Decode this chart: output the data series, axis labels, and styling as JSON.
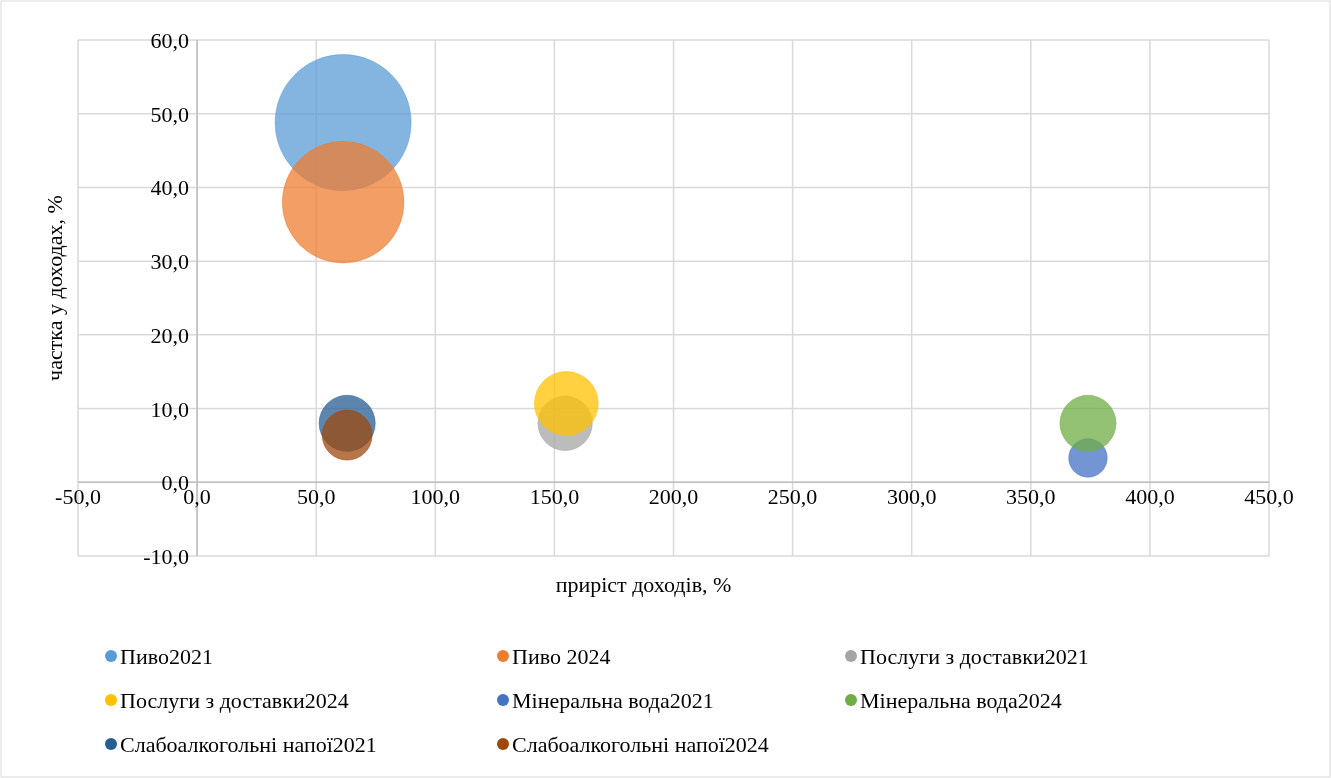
{
  "chart_data": {
    "type": "bubble",
    "xlabel": "приріст доходів, %",
    "ylabel": "частка у доходах, %",
    "xlim": [
      -50,
      450
    ],
    "ylim": [
      -10,
      60
    ],
    "xticks": [
      {
        "value": -50,
        "label": "-50,0"
      },
      {
        "value": 0,
        "label": "0,0"
      },
      {
        "value": 50,
        "label": "50,0"
      },
      {
        "value": 100,
        "label": "100,0"
      },
      {
        "value": 150,
        "label": "150,0"
      },
      {
        "value": 200,
        "label": "200,0"
      },
      {
        "value": 250,
        "label": "250,0"
      },
      {
        "value": 300,
        "label": "300,0"
      },
      {
        "value": 350,
        "label": "350,0"
      },
      {
        "value": 400,
        "label": "400,0"
      },
      {
        "value": 450,
        "label": "450,0"
      }
    ],
    "yticks": [
      {
        "value": -10,
        "label": "-10,0"
      },
      {
        "value": 0,
        "label": "0,0"
      },
      {
        "value": 10,
        "label": "10,0"
      },
      {
        "value": 20,
        "label": "20,0"
      },
      {
        "value": 30,
        "label": "30,0"
      },
      {
        "value": 40,
        "label": "40,0"
      },
      {
        "value": 50,
        "label": "50,0"
      },
      {
        "value": 60,
        "label": "60,0"
      }
    ],
    "grid": true,
    "legend": "bottom",
    "series": [
      {
        "name": "Пиво2021",
        "color": "#5b9bd5",
        "x": [
          61.3
        ],
        "values": [
          48.8
        ],
        "sizes": [
          1
        ]
      },
      {
        "name": "Пиво 2024",
        "color": "#ed7d31",
        "x": [
          61.3
        ],
        "values": [
          38.0
        ],
        "sizes": [
          0.8
        ]
      },
      {
        "name": "Послуги з доставки2021",
        "color": "#a5a5a5",
        "x": [
          154.5
        ],
        "values": [
          8.0
        ],
        "sizes": [
          0.16
        ]
      },
      {
        "name": "Послуги з доставки2024",
        "color": "#ffc000",
        "x": [
          155
        ],
        "values": [
          10.7
        ],
        "sizes": [
          0.22
        ]
      },
      {
        "name": "Мінеральна вода2021",
        "color": "#4472c4",
        "x": [
          374
        ],
        "values": [
          3.3
        ],
        "sizes": [
          0.08
        ]
      },
      {
        "name": "Мінеральна вода2024",
        "color": "#70ad47",
        "x": [
          374
        ],
        "values": [
          8.0
        ],
        "sizes": [
          0.17
        ]
      },
      {
        "name": "Слабоалкогольні напої2021",
        "color": "#255e91",
        "x": [
          63
        ],
        "values": [
          8.0
        ],
        "sizes": [
          0.17
        ]
      },
      {
        "name": "Слабоалкогольні напої2024",
        "color": "#9e480e",
        "x": [
          63
        ],
        "values": [
          6.4
        ],
        "sizes": [
          0.135
        ]
      }
    ]
  }
}
